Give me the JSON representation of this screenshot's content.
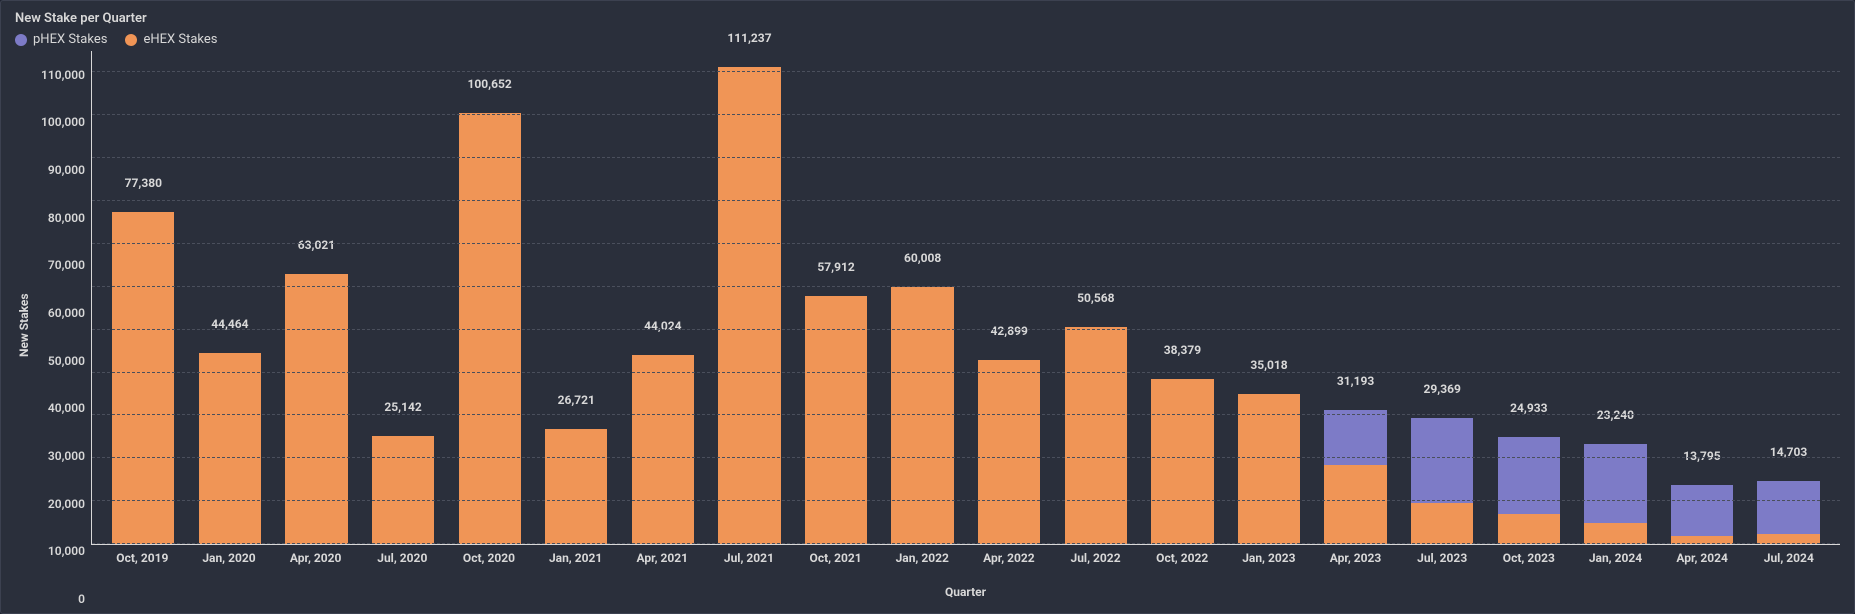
{
  "chart": {
    "type": "stacked-bar",
    "title": "New Stake per Quarter",
    "xlabel": "Quarter",
    "ylabel": "New Stakes",
    "background_color": "#2a2f3b",
    "page_bg": "#1f2430",
    "grid_color": "#4a4f5c",
    "axis_color": "#d8d8d8",
    "text_color": "#d8d8d8",
    "title_fontsize": 13,
    "label_fontsize": 12,
    "tick_fontsize": 12,
    "legend": [
      {
        "key": "phex",
        "label": "pHEX Stakes",
        "color": "#7d7bc7"
      },
      {
        "key": "ehex",
        "label": "eHEX Stakes",
        "color": "#f09556"
      }
    ],
    "ylim": [
      0,
      115000
    ],
    "yticks": [
      0,
      10000,
      20000,
      30000,
      40000,
      50000,
      60000,
      70000,
      80000,
      90000,
      100000,
      110000
    ],
    "ytick_labels": [
      "0",
      "10,000",
      "20,000",
      "30,000",
      "40,000",
      "50,000",
      "60,000",
      "70,000",
      "80,000",
      "90,000",
      "100,000",
      "110,000"
    ],
    "bar_width_pct": 72,
    "categories": [
      "Oct, 2019",
      "Jan, 2020",
      "Apr, 2020",
      "Jul, 2020",
      "Oct, 2020",
      "Jan, 2021",
      "Apr, 2021",
      "Jul, 2021",
      "Oct, 2021",
      "Jan, 2022",
      "Apr, 2022",
      "Jul, 2022",
      "Oct, 2022",
      "Jan, 2023",
      "Apr, 2023",
      "Jul, 2023",
      "Oct, 2023",
      "Jan, 2024",
      "Apr, 2024",
      "Jul, 2024"
    ],
    "totals": [
      77380,
      44464,
      63021,
      25142,
      100652,
      26721,
      44024,
      111237,
      57912,
      60008,
      42899,
      50568,
      38379,
      35018,
      31193,
      29369,
      24933,
      23240,
      13795,
      14703
    ],
    "total_labels": [
      "77,380",
      "44,464",
      "63,021",
      "25,142",
      "100,652",
      "26,721",
      "44,024",
      "111,237",
      "57,912",
      "60,008",
      "42,899",
      "50,568",
      "38,379",
      "35,018",
      "31,193",
      "29,369",
      "24,933",
      "23,240",
      "13,795",
      "14,703"
    ],
    "series": {
      "ehex": [
        77380,
        44464,
        63021,
        25142,
        100652,
        26721,
        44024,
        111237,
        57912,
        60008,
        42899,
        50568,
        38379,
        35018,
        18500,
        9500,
        7000,
        5000,
        1800,
        2300
      ],
      "phex": [
        0,
        0,
        0,
        0,
        0,
        0,
        0,
        0,
        0,
        0,
        0,
        0,
        0,
        0,
        12693,
        19869,
        17933,
        18240,
        11995,
        12403
      ]
    }
  }
}
